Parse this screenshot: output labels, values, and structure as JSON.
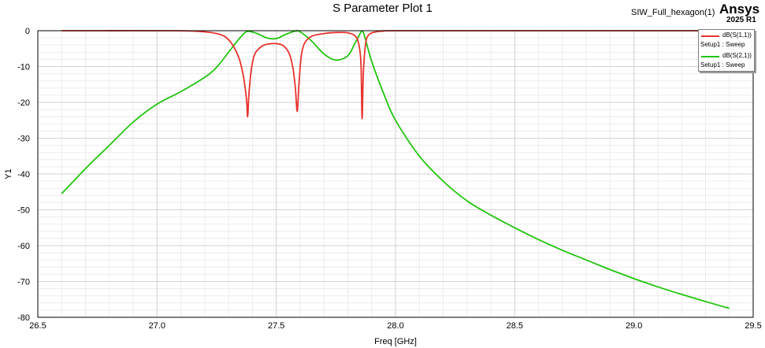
{
  "chart_data": {
    "type": "line",
    "title": "S Parameter Plot 1",
    "project": "SIW_Full_hexagon(1)",
    "brand": "Ansys",
    "version": "2025 R1",
    "xlabel": "Freq [GHz]",
    "ylabel": "Y1",
    "xlim": [
      26.5,
      29.5
    ],
    "ylim": [
      -80,
      0
    ],
    "xticks": [
      26.5,
      27.0,
      27.5,
      28.0,
      28.5,
      29.0,
      29.5
    ],
    "xtick_labels": [
      "26.5",
      "27.0",
      "27.5",
      "28.0",
      "28.5",
      "29.0",
      "29.5"
    ],
    "yticks": [
      0,
      -10,
      -20,
      -30,
      -40,
      -50,
      -60,
      -70,
      -80
    ],
    "ytick_labels": [
      "0",
      "-10",
      "-20",
      "-30",
      "-40",
      "-50",
      "-60",
      "-70",
      "-80"
    ],
    "grid": true,
    "legend_position": "top-right",
    "series": [
      {
        "name": "dB(S(1,1))",
        "setup": "Setup1 : Sweep",
        "color": "#e8332d",
        "x": [
          26.6,
          27.0,
          27.15,
          27.25,
          27.3,
          27.34,
          27.36,
          27.375,
          27.38,
          27.385,
          27.395,
          27.41,
          27.44,
          27.47,
          27.5,
          27.53,
          27.555,
          27.57,
          27.58,
          27.588,
          27.595,
          27.605,
          27.62,
          27.65,
          27.7,
          27.75,
          27.8,
          27.83,
          27.845,
          27.855,
          27.86,
          27.865,
          27.875,
          27.89,
          27.92,
          27.95,
          28.0,
          28.5,
          29.4
        ],
        "y": [
          0,
          0,
          -0.1,
          -0.8,
          -2.5,
          -7,
          -12,
          -19,
          -24,
          -18,
          -11,
          -6.5,
          -4.3,
          -3.7,
          -3.6,
          -4.2,
          -6.5,
          -10.5,
          -16,
          -22.5,
          -15,
          -7,
          -3.3,
          -1.5,
          -0.8,
          -0.5,
          -0.6,
          -1.4,
          -3.5,
          -9,
          -24.5,
          -12,
          -3.5,
          -1,
          -0.3,
          -0.1,
          0,
          0,
          0
        ]
      },
      {
        "name": "dB(S(2,1))",
        "setup": "Setup1 : Sweep",
        "color": "#22c40f",
        "x": [
          26.6,
          26.7,
          26.8,
          26.9,
          27.0,
          27.1,
          27.2,
          27.25,
          27.3,
          27.35,
          27.38,
          27.42,
          27.46,
          27.5,
          27.54,
          27.58,
          27.6,
          27.65,
          27.7,
          27.75,
          27.8,
          27.83,
          27.85,
          27.86,
          27.87,
          27.9,
          27.95,
          28.0,
          28.1,
          28.2,
          28.3,
          28.4,
          28.5,
          28.6,
          28.7,
          28.8,
          28.9,
          29.0,
          29.1,
          29.2,
          29.3,
          29.4
        ],
        "y": [
          -45.5,
          -38.5,
          -32,
          -25.5,
          -20.5,
          -17,
          -13,
          -10.2,
          -6,
          -1.8,
          -0.2,
          -0.8,
          -2,
          -2.2,
          -1,
          -0.1,
          -0.3,
          -3,
          -6.5,
          -8.2,
          -7,
          -3.5,
          -1,
          -0.1,
          -1.5,
          -8.5,
          -17.5,
          -25,
          -35,
          -42,
          -47.5,
          -51.5,
          -55,
          -58.3,
          -61.3,
          -64,
          -66.7,
          -69.2,
          -71.5,
          -73.6,
          -75.6,
          -77.5
        ]
      }
    ]
  }
}
